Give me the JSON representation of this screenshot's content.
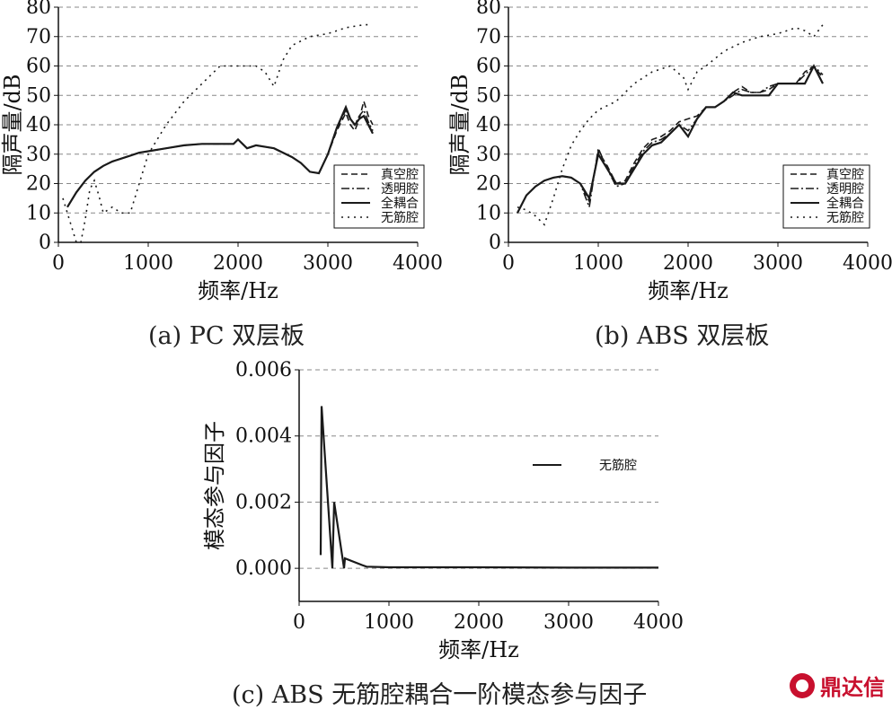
{
  "captions": {
    "a": "(a) PC 双层板",
    "b": "(b) ABS 双层板",
    "c": "(c) ABS 无筋腔耦合一阶模态参与因子"
  },
  "watermark": "鼎达信",
  "chart_data": [
    {
      "id": "a",
      "type": "line",
      "xlabel": "频率/Hz",
      "ylabel": "隔声量/dB",
      "xlim": [
        0,
        4000
      ],
      "ylim": [
        0,
        80
      ],
      "xticks": [
        0,
        1000,
        2000,
        3000,
        4000
      ],
      "yticks": [
        0,
        10,
        20,
        30,
        40,
        50,
        60,
        70,
        80
      ],
      "grid": "horizontal-dashed",
      "legend_position": "bottom-right",
      "series": [
        {
          "name": "真空腔",
          "style": "dashed",
          "x": [
            100,
            200,
            300,
            400,
            500,
            600,
            700,
            800,
            900,
            1000,
            1200,
            1400,
            1600,
            1800,
            1950,
            2000,
            2100,
            2200,
            2400,
            2600,
            2700,
            2800,
            2900,
            3000,
            3100,
            3200,
            3250,
            3300,
            3350,
            3400,
            3450,
            3500
          ],
          "y": [
            12,
            17,
            21,
            24,
            26,
            27.5,
            28.5,
            29.5,
            30.5,
            31,
            32,
            33,
            33.5,
            33.5,
            33.5,
            35,
            32,
            33,
            32,
            29,
            27,
            24,
            23.5,
            30,
            38,
            44,
            40,
            38,
            42,
            48,
            43,
            40
          ]
        },
        {
          "name": "透明腔",
          "style": "dashdot",
          "x": [
            100,
            200,
            300,
            400,
            500,
            600,
            700,
            800,
            900,
            1000,
            1200,
            1400,
            1600,
            1800,
            1950,
            2000,
            2100,
            2200,
            2400,
            2600,
            2700,
            2800,
            2900,
            3000,
            3100,
            3200,
            3250,
            3300,
            3350,
            3400,
            3450,
            3500
          ],
          "y": [
            12,
            17,
            21,
            24,
            26,
            27.5,
            28.5,
            29.5,
            30.5,
            31,
            32,
            33,
            33.5,
            33.5,
            33.5,
            35,
            32,
            33,
            32,
            29,
            27,
            24,
            23.5,
            30,
            39,
            45,
            42,
            40,
            43,
            45,
            41,
            38
          ]
        },
        {
          "name": "全耦合",
          "style": "solid",
          "x": [
            100,
            200,
            300,
            400,
            500,
            600,
            700,
            800,
            900,
            1000,
            1200,
            1400,
            1600,
            1800,
            1950,
            2000,
            2100,
            2200,
            2400,
            2600,
            2700,
            2800,
            2900,
            3000,
            3100,
            3200,
            3250,
            3300,
            3350,
            3400,
            3450,
            3500
          ],
          "y": [
            12,
            17,
            21,
            24,
            26,
            27.5,
            28.5,
            29.5,
            30.5,
            31,
            32,
            33,
            33.5,
            33.5,
            33.5,
            35,
            32,
            33,
            32,
            29,
            27,
            24,
            23.5,
            30,
            39,
            46,
            42,
            40,
            42,
            43,
            40,
            37
          ]
        },
        {
          "name": "无筋腔",
          "style": "dotted",
          "x": [
            50,
            100,
            150,
            200,
            250,
            300,
            350,
            400,
            450,
            500,
            600,
            700,
            800,
            900,
            1000,
            1200,
            1400,
            1600,
            1800,
            2000,
            2200,
            2300,
            2400,
            2500,
            2600,
            2800,
            3000,
            3200,
            3400,
            3450
          ],
          "y": [
            15,
            10,
            5,
            0,
            0,
            8,
            18,
            21,
            16,
            10,
            12,
            10,
            10,
            20,
            30,
            40,
            48,
            54,
            60,
            60,
            60,
            58,
            53,
            62,
            67,
            70,
            71,
            73,
            74,
            74
          ]
        }
      ]
    },
    {
      "id": "b",
      "type": "line",
      "xlabel": "频率/Hz",
      "ylabel": "隔声量/dB",
      "xlim": [
        0,
        4000
      ],
      "ylim": [
        0,
        80
      ],
      "xticks": [
        0,
        1000,
        2000,
        3000,
        4000
      ],
      "yticks": [
        0,
        10,
        20,
        30,
        40,
        50,
        60,
        70,
        80
      ],
      "grid": "horizontal-dashed",
      "legend_position": "bottom-right",
      "series": [
        {
          "name": "真空腔",
          "style": "dashed",
          "x": [
            100,
            200,
            300,
            400,
            500,
            600,
            700,
            800,
            900,
            1000,
            1100,
            1200,
            1300,
            1400,
            1500,
            1600,
            1700,
            1800,
            1900,
            2000,
            2100,
            2200,
            2300,
            2400,
            2500,
            2600,
            2700,
            2800,
            2900,
            3000,
            3100,
            3200,
            3300,
            3400,
            3500
          ],
          "y": [
            10,
            16,
            19,
            21,
            22,
            22.5,
            22,
            20,
            14,
            31,
            26,
            20,
            21,
            27,
            32,
            35,
            36,
            38,
            41,
            42,
            43,
            46,
            46,
            48,
            51,
            53,
            51,
            51,
            52,
            54,
            54,
            54,
            58,
            60,
            56
          ]
        },
        {
          "name": "透明腔",
          "style": "dashdot",
          "x": [
            100,
            200,
            300,
            400,
            500,
            600,
            700,
            800,
            900,
            1000,
            1100,
            1200,
            1300,
            1400,
            1500,
            1600,
            1700,
            1800,
            1900,
            2000,
            2100,
            2200,
            2300,
            2400,
            2500,
            2600,
            2700,
            2800,
            2900,
            3000,
            3100,
            3200,
            3300,
            3400,
            3500
          ],
          "y": [
            10,
            16,
            19,
            21,
            22,
            22.5,
            22,
            20,
            12,
            32,
            25,
            19,
            20,
            26,
            31,
            34,
            35,
            37,
            40,
            38,
            42,
            46,
            46,
            48,
            50,
            52,
            51,
            51,
            53,
            54,
            54,
            54,
            57,
            60,
            57
          ]
        },
        {
          "name": "全耦合",
          "style": "solid",
          "x": [
            100,
            200,
            300,
            400,
            500,
            600,
            700,
            800,
            900,
            1000,
            1100,
            1200,
            1300,
            1400,
            1500,
            1600,
            1700,
            1800,
            1900,
            2000,
            2100,
            2200,
            2300,
            2400,
            2500,
            2600,
            2700,
            2800,
            2900,
            3000,
            3100,
            3200,
            3300,
            3400,
            3500
          ],
          "y": [
            10,
            16,
            19,
            21,
            22,
            22.5,
            22,
            20,
            15,
            30,
            25,
            20,
            20,
            25,
            30,
            33,
            34,
            37,
            40,
            36,
            42,
            46,
            46,
            48,
            51,
            50,
            50,
            50,
            50,
            54,
            54,
            54,
            54,
            60,
            54
          ]
        },
        {
          "name": "无筋腔",
          "style": "dotted",
          "x": [
            100,
            200,
            300,
            400,
            500,
            600,
            700,
            800,
            900,
            1000,
            1200,
            1400,
            1600,
            1800,
            1950,
            2000,
            2100,
            2200,
            2400,
            2600,
            2800,
            3000,
            3200,
            3300,
            3400,
            3500
          ],
          "y": [
            12,
            11,
            9,
            6,
            15,
            25,
            33,
            38,
            42,
            45,
            48,
            54,
            58,
            60,
            56,
            52,
            58,
            60,
            65,
            68,
            70,
            71,
            73,
            72,
            70,
            74
          ]
        }
      ]
    },
    {
      "id": "c",
      "type": "line",
      "xlabel": "频率/Hz",
      "ylabel": "模态参与因子",
      "xlim": [
        0,
        4000
      ],
      "ylim": [
        -0.001,
        0.006
      ],
      "xticks": [
        0,
        1000,
        2000,
        3000,
        4000
      ],
      "yticks": [
        0.0,
        0.002,
        0.004,
        0.006
      ],
      "ytick_labels": [
        "0.000",
        "0.002",
        "0.004",
        "0.006"
      ],
      "grid": "horizontal-dashed",
      "legend_position": "top-right",
      "series": [
        {
          "name": "无筋腔",
          "style": "solid",
          "x": [
            240,
            250,
            370,
            390,
            500,
            510,
            700,
            750,
            1000,
            2000,
            3000,
            4000
          ],
          "y": [
            0.0004,
            0.0049,
            0.0,
            0.002,
            0.0,
            0.0003,
            0.0001,
            5e-05,
            3e-05,
            3e-05,
            2e-05,
            2e-05
          ]
        }
      ]
    }
  ]
}
